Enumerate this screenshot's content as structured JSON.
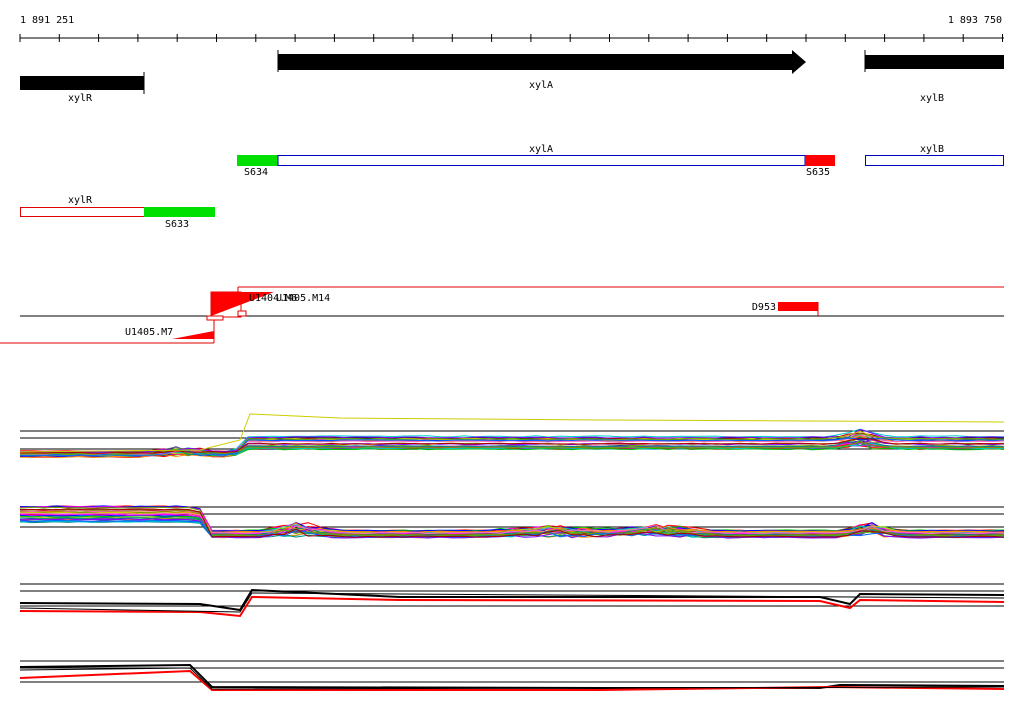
{
  "ruler": {
    "start_label": "1 891 251",
    "end_label": "1 893 750"
  },
  "genes": {
    "xylR": "xylR",
    "xylA": "xylA",
    "xylB": "xylB"
  },
  "transcripts": {
    "xylA": "xylA",
    "xylB": "xylB",
    "xylR": "xylR"
  },
  "segments": {
    "s634": "S634",
    "s635": "S635",
    "s633": "S633"
  },
  "features": {
    "u1404_overlap": "U1404.M6",
    "u1405_m14": "U1405.M14",
    "u1405_m7": "U1405.M7",
    "d953": "D953"
  },
  "colors": {
    "background": "#ffffff",
    "gene": "#000000",
    "transcript_outline_blue": "#0000c0",
    "transcript_outline_red": "#e00000",
    "segment_green": "#00e000",
    "segment_red": "#ff0000"
  }
}
